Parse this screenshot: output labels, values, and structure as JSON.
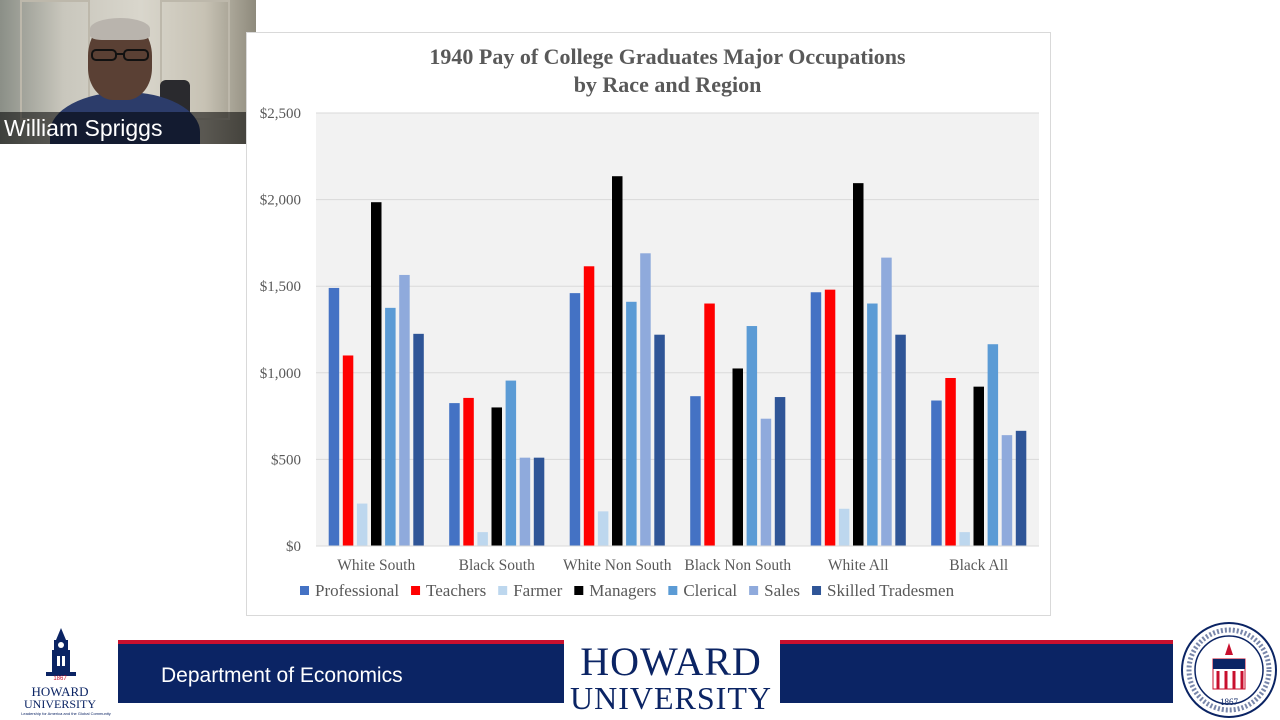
{
  "video_tile": {
    "participant_name": "William Spriggs"
  },
  "chart_data": {
    "type": "bar",
    "title": [
      "1940 Pay of College Graduates Major Occupations",
      "by Race and Region"
    ],
    "categories": [
      "White South",
      "Black South",
      "White Non South",
      "Black Non South",
      "White All",
      "Black All"
    ],
    "series": [
      {
        "name": "Professional",
        "color": "#4472c4",
        "values": [
          1490,
          825,
          1460,
          865,
          1465,
          840
        ]
      },
      {
        "name": "Teachers",
        "color": "#ff0000",
        "values": [
          1100,
          855,
          1615,
          1400,
          1480,
          970
        ]
      },
      {
        "name": "Farmer",
        "color": "#bdd7ee",
        "values": [
          245,
          80,
          200,
          0,
          215,
          80
        ]
      },
      {
        "name": "Managers",
        "color": "#000000",
        "values": [
          1985,
          800,
          2135,
          1025,
          2095,
          920
        ]
      },
      {
        "name": "Clerical",
        "color": "#5b9bd5",
        "values": [
          1375,
          955,
          1410,
          1270,
          1400,
          1165
        ]
      },
      {
        "name": "Sales",
        "color": "#8faadc",
        "values": [
          1565,
          510,
          1690,
          735,
          1665,
          640
        ]
      },
      {
        "name": "Skilled Tradesmen",
        "color": "#2f5597",
        "values": [
          1225,
          510,
          1220,
          860,
          1220,
          665
        ]
      }
    ],
    "ylim": [
      0,
      2500
    ],
    "yticks": [
      "$0",
      "$500",
      "$1,000",
      "$1,500",
      "$2,000",
      "$2,500"
    ],
    "ytick_values": [
      0,
      500,
      1000,
      1500,
      2000,
      2500
    ],
    "xlabel": "",
    "ylabel": "",
    "legend_position": "bottom",
    "plot_background": "#f2f2f2"
  },
  "footer": {
    "department": "Department of Economics",
    "wordmark_line1": "HOWARD",
    "wordmark_line2": "UNIVERSITY",
    "logo_year": "1867",
    "logo_name": "HOWARD",
    "logo_name2": "UNIVERSITY",
    "logo_tagline": "Leadership for America and the Global Community",
    "seal_year": "1867"
  }
}
